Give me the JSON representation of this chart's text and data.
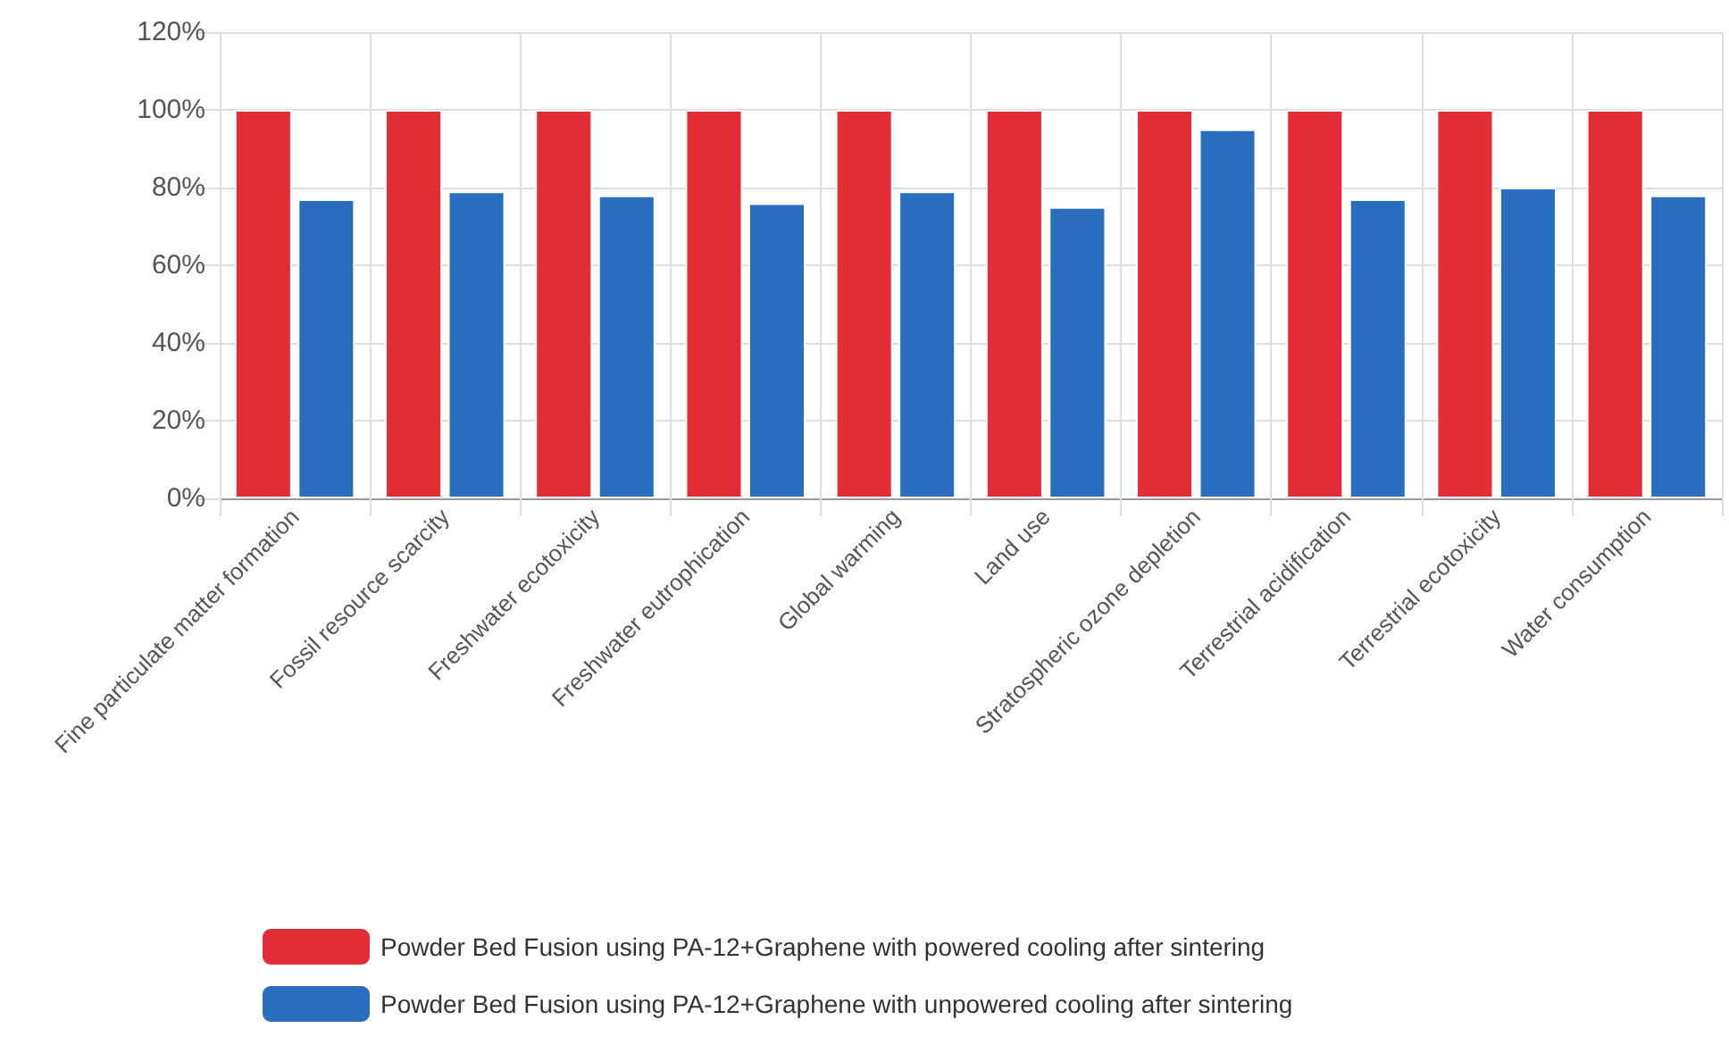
{
  "chart_data": {
    "type": "bar",
    "categories": [
      "Fine particulate matter formation",
      "Fossil resource scarcity",
      "Freshwater ecotoxicity",
      "Freshwater eutrophication",
      "Global warming",
      "Land use",
      "Stratospheric ozone depletion",
      "Terrestrial acidification",
      "Terrestrial ecotoxicity",
      "Water consumption"
    ],
    "series": [
      {
        "name": "Powder Bed Fusion using PA-12+Graphene with powered cooling after sintering",
        "color": "#e32d36",
        "values": [
          100,
          100,
          100,
          100,
          100,
          100,
          100,
          100,
          100,
          100
        ]
      },
      {
        "name": "Powder Bed Fusion using PA-12+Graphene with unpowered cooling after sintering",
        "color": "#2a6ebf",
        "values": [
          77,
          79,
          78,
          76,
          79,
          75,
          95,
          77,
          80,
          78
        ]
      }
    ],
    "ylim": [
      0,
      120
    ],
    "yticks": [
      {
        "value": 0,
        "label": "0%"
      },
      {
        "value": 20,
        "label": "20%"
      },
      {
        "value": 40,
        "label": "40%"
      },
      {
        "value": 60,
        "label": "60%"
      },
      {
        "value": 80,
        "label": "80%"
      },
      {
        "value": 100,
        "label": "100%"
      },
      {
        "value": 120,
        "label": "120%"
      }
    ],
    "grid": true,
    "legend": "bottom"
  }
}
